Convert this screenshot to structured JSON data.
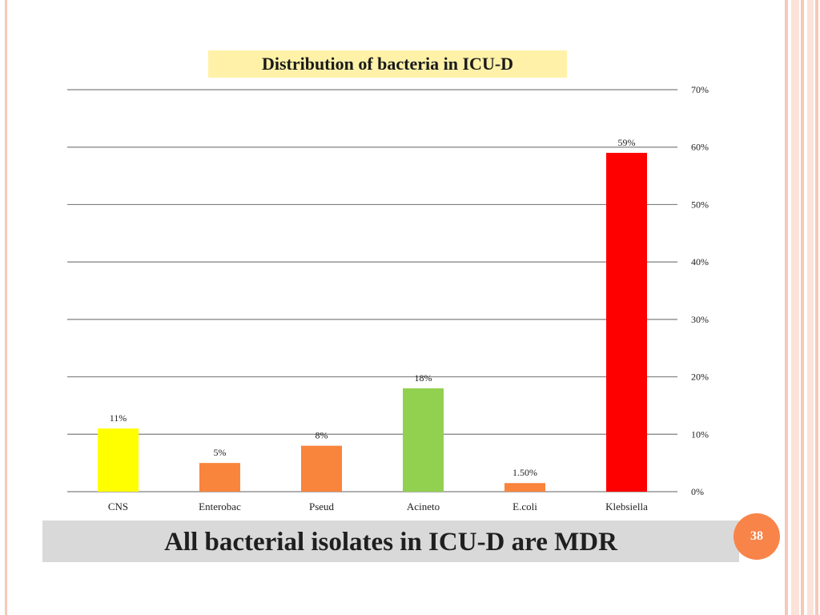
{
  "chart_data": {
    "type": "bar",
    "title": "Distribution of bacteria in ICU-D",
    "categories": [
      "CNS",
      "Enterobac",
      "Pseud",
      "Acineto",
      "E.coli",
      "Klebsiella"
    ],
    "values": [
      11,
      5,
      8,
      18,
      1.5,
      59
    ],
    "data_labels": [
      "11%",
      "5%",
      "8%",
      "18%",
      "1.50%",
      "59%"
    ],
    "bar_colors": [
      "#ffff00",
      "#f9843c",
      "#f9843c",
      "#92d050",
      "#f9843c",
      "#ff0000"
    ],
    "ylim": [
      0,
      70
    ],
    "y_ticks": [
      0,
      10,
      20,
      30,
      40,
      50,
      60,
      70
    ],
    "y_tick_labels": [
      "0%",
      "10%",
      "20%",
      "30%",
      "40%",
      "50%",
      "60%",
      "70%"
    ],
    "y_axis_side": "right",
    "grid": true,
    "xlabel": "",
    "ylabel": ""
  },
  "footer": {
    "statement": "All bacterial isolates in ICU-D are MDR"
  },
  "page": {
    "number": "38"
  }
}
